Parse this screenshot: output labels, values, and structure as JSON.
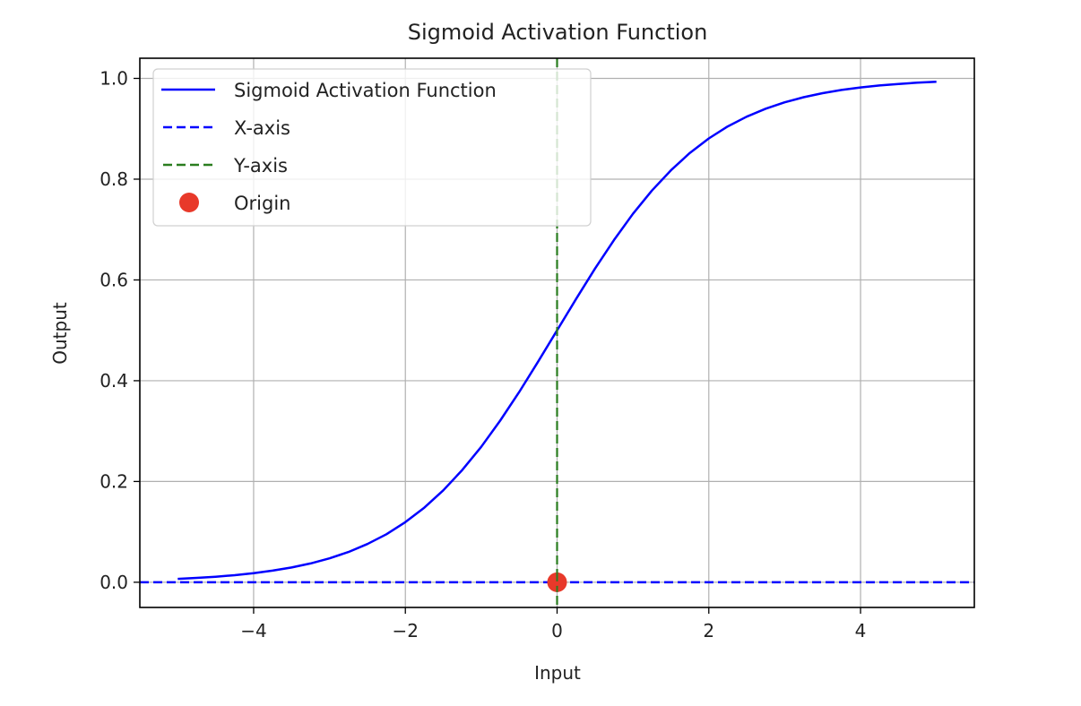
{
  "chart_data": {
    "type": "line",
    "title": "Sigmoid Activation Function",
    "xlabel": "Input",
    "ylabel": "Output",
    "xlim": [
      -5.5,
      5.5
    ],
    "ylim": [
      -0.05,
      1.04
    ],
    "grid": true,
    "legend_position": "top-left",
    "xticks": [
      -4,
      -2,
      0,
      2,
      4
    ],
    "xtick_labels": [
      "−4",
      "−2",
      "0",
      "2",
      "4"
    ],
    "yticks": [
      0.0,
      0.2,
      0.4,
      0.6,
      0.8,
      1.0
    ],
    "ytick_labels": [
      "0.0",
      "0.2",
      "0.4",
      "0.6",
      "0.8",
      "1.0"
    ],
    "series": [
      {
        "name": "Sigmoid Activation Function",
        "style": "solid",
        "color": "#0000ff",
        "x": [
          -5,
          -4.75,
          -4.5,
          -4.25,
          -4,
          -3.75,
          -3.5,
          -3.25,
          -3,
          -2.75,
          -2.5,
          -2.25,
          -2,
          -1.75,
          -1.5,
          -1.25,
          -1,
          -0.75,
          -0.5,
          -0.25,
          0,
          0.25,
          0.5,
          0.75,
          1,
          1.25,
          1.5,
          1.75,
          2,
          2.25,
          2.5,
          2.75,
          3,
          3.25,
          3.5,
          3.75,
          4,
          4.25,
          4.5,
          4.75,
          5
        ],
        "y": [
          0.0067,
          0.0086,
          0.011,
          0.014,
          0.018,
          0.023,
          0.0293,
          0.0373,
          0.0474,
          0.0601,
          0.0759,
          0.0953,
          0.1192,
          0.148,
          0.1824,
          0.2227,
          0.2689,
          0.3208,
          0.3775,
          0.4378,
          0.5,
          0.5622,
          0.6225,
          0.6792,
          0.7311,
          0.7773,
          0.8176,
          0.852,
          0.8808,
          0.9047,
          0.9241,
          0.9399,
          0.9526,
          0.9627,
          0.9707,
          0.977,
          0.982,
          0.986,
          0.989,
          0.9914,
          0.9933
        ]
      },
      {
        "name": "X-axis",
        "style": "dashed",
        "color": "#0000ff",
        "type": "hline",
        "y": 0
      },
      {
        "name": "Y-axis",
        "style": "dashed",
        "color": "#2a7d1f",
        "type": "vline",
        "x": 0
      },
      {
        "name": "Origin",
        "style": "marker",
        "color": "#e8392a",
        "type": "point",
        "x": 0,
        "y": 0
      }
    ]
  }
}
